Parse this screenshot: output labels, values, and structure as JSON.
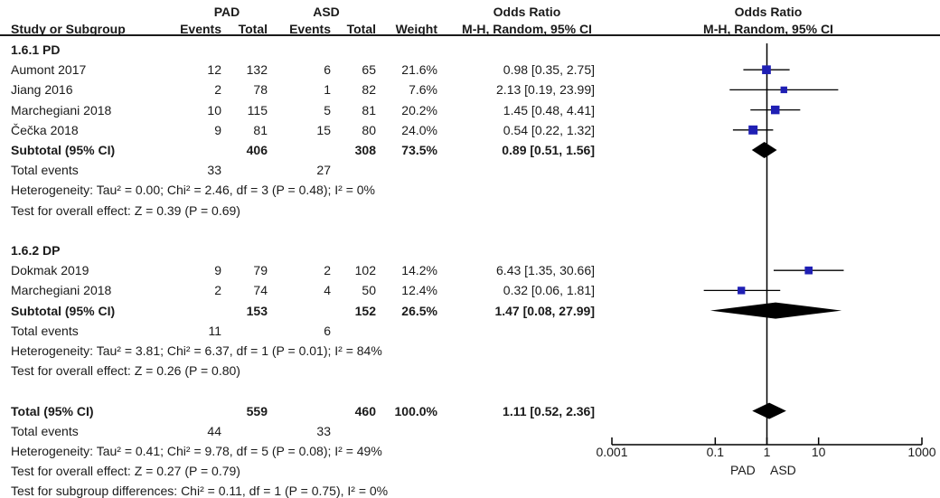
{
  "header": {
    "group1": "PAD",
    "group2": "ASD",
    "or_title": "Odds Ratio",
    "or_title_plot": "Odds Ratio",
    "study_col": "Study or Subgroup",
    "events1": "Events",
    "total1": "Total",
    "events2": "Events",
    "total2": "Total",
    "weight": "Weight",
    "method": "M-H, Random, 95% CI",
    "method_plot": "M-H, Random, 95% CI"
  },
  "rows": [
    {
      "kind": "subgroup",
      "label": "1.6.1 PD"
    },
    {
      "kind": "study",
      "label": "Aumont 2017",
      "e1": "12",
      "t1": "132",
      "e2": "6",
      "t2": "65",
      "w": "21.6%",
      "ci": "0.98 [0.35, 2.75]"
    },
    {
      "kind": "study",
      "label": "Jiang 2016",
      "e1": "2",
      "t1": "78",
      "e2": "1",
      "t2": "82",
      "w": "7.6%",
      "ci": "2.13 [0.19, 23.99]"
    },
    {
      "kind": "study",
      "label": "Marchegiani 2018",
      "e1": "10",
      "t1": "115",
      "e2": "5",
      "t2": "81",
      "w": "20.2%",
      "ci": "1.45 [0.48, 4.41]"
    },
    {
      "kind": "study",
      "label": "Čečka 2018",
      "e1": "9",
      "t1": "81",
      "e2": "15",
      "t2": "80",
      "w": "24.0%",
      "ci": "0.54 [0.22, 1.32]"
    },
    {
      "kind": "subtotal",
      "label": "Subtotal (95% CI)",
      "t1": "406",
      "t2": "308",
      "w": "73.5%",
      "ci": "0.89 [0.51, 1.56]"
    },
    {
      "kind": "events",
      "label": "Total events",
      "e1": "33",
      "e2": "27"
    },
    {
      "kind": "text",
      "label": "Heterogeneity: Tau² = 0.00; Chi² = 2.46, df = 3 (P = 0.48); I² = 0%"
    },
    {
      "kind": "text",
      "label": "Test for overall effect: Z = 0.39 (P = 0.69)"
    },
    {
      "kind": "blank"
    },
    {
      "kind": "subgroup",
      "label": "1.6.2 DP"
    },
    {
      "kind": "study",
      "label": "Dokmak  2019",
      "e1": "9",
      "t1": "79",
      "e2": "2",
      "t2": "102",
      "w": "14.2%",
      "ci": "6.43 [1.35, 30.66]"
    },
    {
      "kind": "study",
      "label": "Marchegiani 2018",
      "e1": "2",
      "t1": "74",
      "e2": "4",
      "t2": "50",
      "w": "12.4%",
      "ci": "0.32 [0.06, 1.81]"
    },
    {
      "kind": "subtotal",
      "label": "Subtotal (95% CI)",
      "t1": "153",
      "t2": "152",
      "w": "26.5%",
      "ci": "1.47 [0.08, 27.99]"
    },
    {
      "kind": "events",
      "label": "Total events",
      "e1": "11",
      "e2": "6"
    },
    {
      "kind": "text",
      "label": "Heterogeneity: Tau² = 3.81; Chi² = 6.37, df = 1 (P = 0.01); I² = 84%"
    },
    {
      "kind": "text",
      "label": "Test for overall effect: Z = 0.26 (P = 0.80)"
    },
    {
      "kind": "blank"
    },
    {
      "kind": "subtotal",
      "label": "Total (95% CI)",
      "t1": "559",
      "t2": "460",
      "w": "100.0%",
      "ci": "1.11 [0.52, 2.36]"
    },
    {
      "kind": "events",
      "label": "Total events",
      "e1": "44",
      "e2": "33"
    },
    {
      "kind": "text",
      "label": "Heterogeneity: Tau² = 0.41; Chi² = 9.78, df = 5 (P = 0.08); I² = 49%"
    },
    {
      "kind": "text",
      "label": "Test for overall effect: Z = 0.27 (P = 0.79)"
    },
    {
      "kind": "text",
      "label": "Test for subgroup differences: Chi² = 0.11, df = 1 (P = 0.75), I² = 0%"
    }
  ],
  "chart_data": {
    "type": "forest",
    "x_scale": "log",
    "xlim": [
      0.001,
      1000
    ],
    "x_ticks": [
      0.001,
      0.1,
      1,
      10,
      1000
    ],
    "x_tick_labels": [
      "0.001",
      "0.1",
      "1",
      "10",
      "1000"
    ],
    "reference_line": 1,
    "favours_left": "PAD",
    "favours_right": "ASD",
    "study_color": "#1f1fb4",
    "diamond_color": "#000000",
    "studies": [
      {
        "name": "Aumont 2017",
        "or": 0.98,
        "lo": 0.35,
        "hi": 2.75,
        "weight": 21.6,
        "row": 1
      },
      {
        "name": "Jiang 2016",
        "or": 2.13,
        "lo": 0.19,
        "hi": 23.99,
        "weight": 7.6,
        "row": 2
      },
      {
        "name": "Marchegiani 2018",
        "or": 1.45,
        "lo": 0.48,
        "hi": 4.41,
        "weight": 20.2,
        "row": 3
      },
      {
        "name": "Čečka 2018",
        "or": 0.54,
        "lo": 0.22,
        "hi": 1.32,
        "weight": 24.0,
        "row": 4
      },
      {
        "name": "Dokmak  2019",
        "or": 6.43,
        "lo": 1.35,
        "hi": 30.66,
        "weight": 14.2,
        "row": 11
      },
      {
        "name": "Marchegiani 2018",
        "or": 0.32,
        "lo": 0.06,
        "hi": 1.81,
        "weight": 12.4,
        "row": 12
      }
    ],
    "diamonds": [
      {
        "name": "Subtotal (95% CI)",
        "or": 0.89,
        "lo": 0.51,
        "hi": 1.56,
        "row": 5
      },
      {
        "name": "Subtotal (95% CI)",
        "or": 1.47,
        "lo": 0.08,
        "hi": 27.99,
        "row": 13
      },
      {
        "name": "Total (95% CI)",
        "or": 1.11,
        "lo": 0.52,
        "hi": 2.36,
        "row": 18
      }
    ]
  }
}
